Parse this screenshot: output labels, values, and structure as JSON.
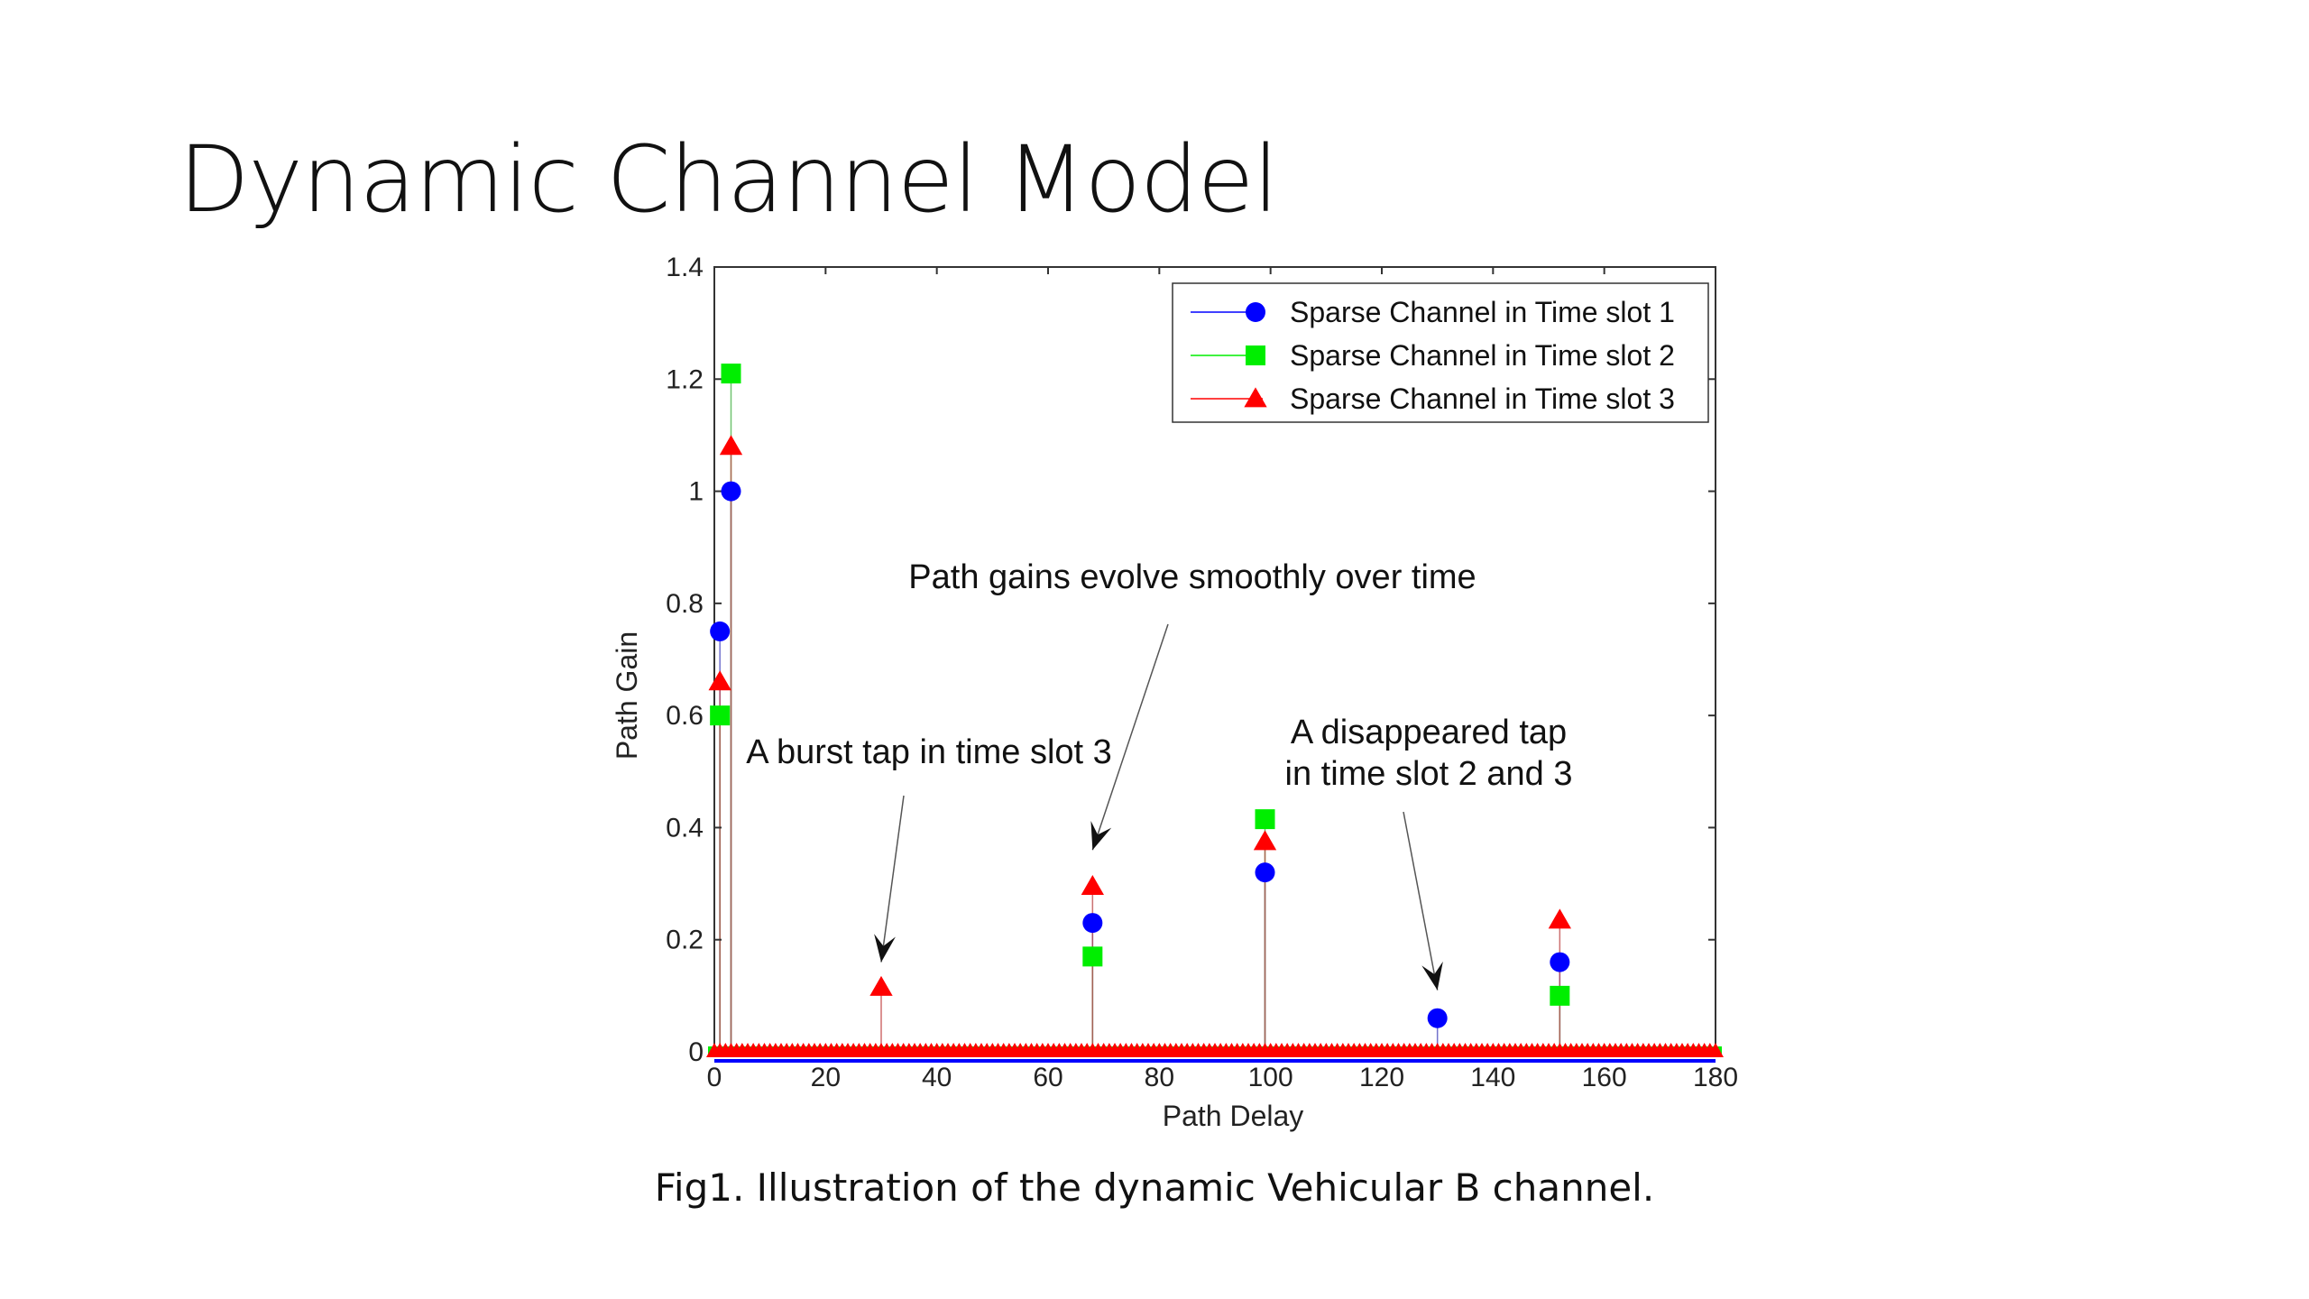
{
  "slide": {
    "title": "Dynamic Channel Model",
    "caption": "Fig1. Illustration of the dynamic Vehicular B channel."
  },
  "chart_data": {
    "type": "scatter",
    "xlabel": "Path Delay",
    "ylabel": "Path Gain",
    "xlim": [
      0,
      180
    ],
    "ylim": [
      0,
      1.4
    ],
    "xticks": [
      0,
      20,
      40,
      60,
      80,
      100,
      120,
      140,
      160,
      180
    ],
    "yticks": [
      0,
      0.2,
      0.4,
      0.6,
      0.8,
      1,
      1.2,
      1.4
    ],
    "ytick_labels": [
      "0",
      "0.2",
      "0.4",
      "0.6",
      "0.8",
      "1",
      "1.2",
      "1.4"
    ],
    "legend_position": "top-right",
    "grid": false,
    "zero_taps_marked": true,
    "series": [
      {
        "name": "Sparse Channel in Time slot 1",
        "marker": "circle",
        "color": "#0000ff",
        "x": [
          1,
          3,
          30,
          68,
          99,
          130,
          152
        ],
        "y": [
          0.75,
          1.0,
          0,
          0.23,
          0.32,
          0.06,
          0.16
        ]
      },
      {
        "name": "Sparse Channel in Time slot 2",
        "marker": "square",
        "color": "#00ee00",
        "x": [
          1,
          3,
          30,
          68,
          99,
          130,
          152
        ],
        "y": [
          0.6,
          1.21,
          0,
          0.17,
          0.415,
          0,
          0.1
        ]
      },
      {
        "name": "Sparse Channel in Time slot 3",
        "marker": "triangle",
        "color": "#ff0000",
        "x": [
          1,
          3,
          30,
          68,
          99,
          130,
          152
        ],
        "y": [
          0.66,
          1.08,
          0.115,
          0.295,
          0.375,
          0,
          0.235
        ]
      }
    ],
    "annotations": [
      {
        "lines": [
          "Path gains evolve smoothly over time"
        ],
        "arrow_to": [
          68,
          0.36
        ]
      },
      {
        "lines": [
          "A burst tap in time slot 3"
        ],
        "arrow_to": [
          30,
          0.16
        ]
      },
      {
        "lines": [
          "A disappeared tap",
          "in time slot 2 and 3"
        ],
        "arrow_to": [
          130,
          0.11
        ]
      }
    ]
  }
}
